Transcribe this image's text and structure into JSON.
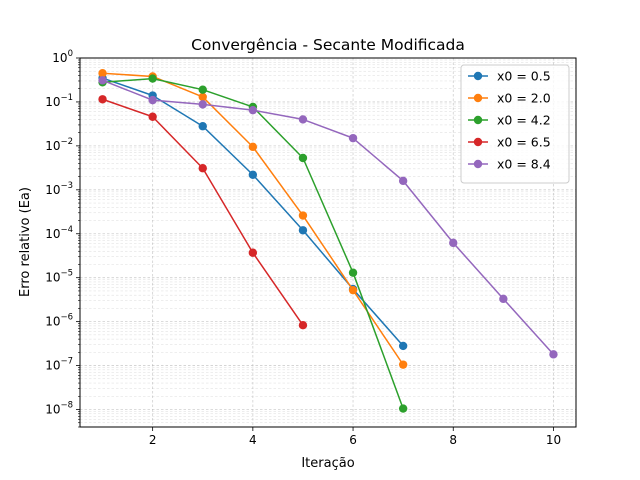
{
  "chart_data": {
    "type": "line",
    "title": "Convergência - Secante Modificada",
    "xlabel": "Iteração",
    "ylabel": "Erro relativo (Ea)",
    "xlim": [
      0.55,
      10.45
    ],
    "ylim": [
      4e-09,
      1.0
    ],
    "yscale": "log",
    "grid": true,
    "legend_position": "top-right",
    "x_ticks": [
      2,
      4,
      6,
      8,
      10
    ],
    "x_tick_labels": [
      "2",
      "4",
      "6",
      "8",
      "10"
    ],
    "y_ticks": [
      1e-08,
      1e-07,
      1e-06,
      1e-05,
      0.0001,
      0.001,
      0.01,
      0.1,
      1
    ],
    "y_tick_labels": [
      {
        "base": "10",
        "exp": "−8"
      },
      {
        "base": "10",
        "exp": "−7"
      },
      {
        "base": "10",
        "exp": "−6"
      },
      {
        "base": "10",
        "exp": "−5"
      },
      {
        "base": "10",
        "exp": "−4"
      },
      {
        "base": "10",
        "exp": "−3"
      },
      {
        "base": "10",
        "exp": "−2"
      },
      {
        "base": "10",
        "exp": "−1"
      },
      {
        "base": "10",
        "exp": "0"
      }
    ],
    "series": [
      {
        "name": "x0 = 0.5",
        "color": "#1f77b4",
        "x": [
          1,
          2,
          3,
          4,
          5,
          6,
          7
        ],
        "values": [
          0.35,
          0.14,
          0.028,
          0.0022,
          0.00012,
          5.5e-06,
          2.8e-07
        ]
      },
      {
        "name": "x0 = 2.0",
        "color": "#ff7f0e",
        "x": [
          1,
          2,
          3,
          4,
          5,
          6,
          7
        ],
        "values": [
          0.45,
          0.38,
          0.13,
          0.0095,
          0.00026,
          5.2e-06,
          1.05e-07
        ]
      },
      {
        "name": "x0 = 4.2",
        "color": "#2ca02c",
        "x": [
          1,
          2,
          3,
          4,
          5,
          6,
          7
        ],
        "values": [
          0.28,
          0.34,
          0.19,
          0.077,
          0.0053,
          1.3e-05,
          1.05e-08
        ]
      },
      {
        "name": "x0 = 6.5",
        "color": "#d62728",
        "x": [
          1,
          2,
          3,
          4,
          5
        ],
        "values": [
          0.115,
          0.046,
          0.0031,
          3.7e-05,
          8.3e-07
        ]
      },
      {
        "name": "x0 = 8.4",
        "color": "#9467bd",
        "x": [
          1,
          2,
          3,
          4,
          5,
          6,
          7,
          8,
          9,
          10
        ],
        "values": [
          0.31,
          0.11,
          0.088,
          0.065,
          0.04,
          0.015,
          0.0016,
          6.2e-05,
          3.3e-06,
          1.8e-07
        ]
      }
    ]
  }
}
